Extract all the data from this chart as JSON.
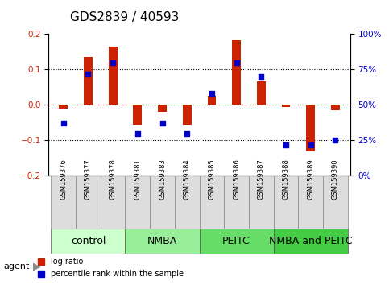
{
  "title": "GDS2839 / 40593",
  "samples": [
    "GSM159376",
    "GSM159377",
    "GSM159378",
    "GSM159381",
    "GSM159383",
    "GSM159384",
    "GSM159385",
    "GSM159386",
    "GSM159387",
    "GSM159388",
    "GSM159389",
    "GSM159390"
  ],
  "log_ratio": [
    -0.01,
    0.135,
    0.165,
    -0.055,
    -0.02,
    -0.055,
    0.025,
    0.182,
    0.068,
    -0.005,
    -0.13,
    -0.015
  ],
  "percentile_rank": [
    37,
    72,
    80,
    30,
    37,
    30,
    58,
    80,
    70,
    22,
    22,
    25
  ],
  "groups": [
    {
      "label": "control",
      "start": 0,
      "end": 3,
      "color": "#ccffcc"
    },
    {
      "label": "NMBA",
      "start": 3,
      "end": 6,
      "color": "#99ee99"
    },
    {
      "label": "PEITC",
      "start": 6,
      "end": 9,
      "color": "#66dd66"
    },
    {
      "label": "NMBA and PEITC",
      "start": 9,
      "end": 12,
      "color": "#44cc44"
    }
  ],
  "bar_color_red": "#cc2200",
  "bar_color_blue": "#0000cc",
  "ylim": [
    -0.2,
    0.2
  ],
  "right_ylim": [
    0,
    100
  ],
  "right_yticks": [
    0,
    25,
    50,
    75,
    100
  ],
  "right_yticklabels": [
    "0%",
    "25%",
    "50%",
    "75%",
    "100%"
  ],
  "left_yticks": [
    -0.2,
    -0.1,
    0.0,
    0.1,
    0.2
  ],
  "hlines": [
    -0.1,
    0.0,
    0.1
  ],
  "legend_items": [
    "log ratio",
    "percentile rank within the sample"
  ],
  "title_fontsize": 11,
  "tick_fontsize": 7.5,
  "group_label_fontsize": 9,
  "bar_width": 0.35
}
